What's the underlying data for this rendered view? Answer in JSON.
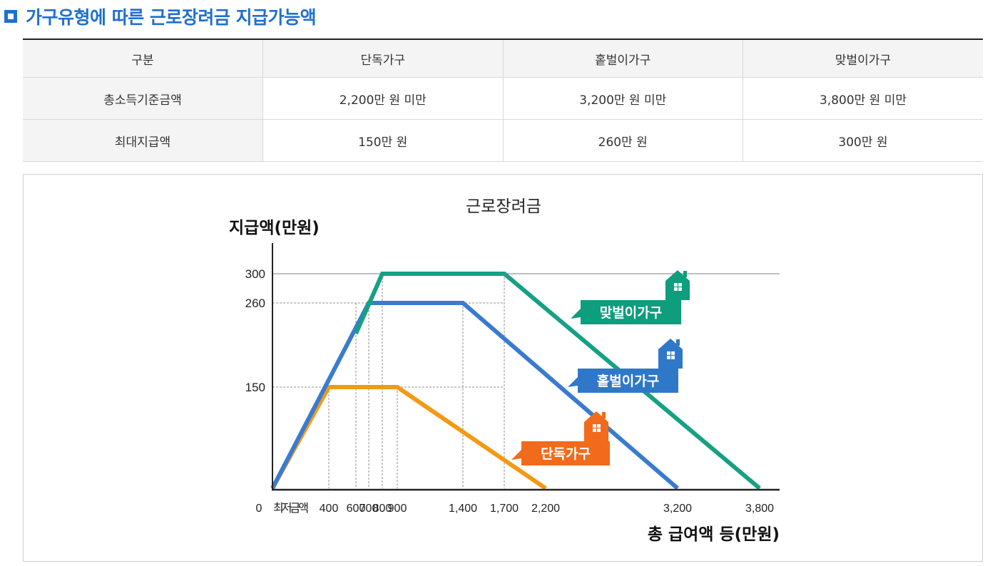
{
  "page": {
    "title": "가구유형에 따른 근로장려금 지급가능액"
  },
  "table": {
    "headers": [
      "구분",
      "단독가구",
      "홑벌이가구",
      "맞벌이가구"
    ],
    "rows": [
      [
        "총소득기준금액",
        "2,200만 원 미만",
        "3,200만 원 미만",
        "3,800만 원 미만"
      ],
      [
        "최대지급액",
        "150만 원",
        "260만 원",
        "300만 원"
      ]
    ]
  },
  "chart_data": {
    "type": "line",
    "title": "근로장려금",
    "ylabel": "지급액(만원)",
    "xlabel": "총 급여액 등(만원)",
    "x_ticks": [
      {
        "value": 0,
        "label": "0"
      },
      {
        "value": 200,
        "label": "최저금액"
      },
      {
        "value": 400,
        "label": "400"
      },
      {
        "value": 600,
        "label": "600"
      },
      {
        "value": 700,
        "label": "700"
      },
      {
        "value": 800,
        "label": "800"
      },
      {
        "value": 900,
        "label": "900"
      },
      {
        "value": 1400,
        "label": "1,400"
      },
      {
        "value": 1700,
        "label": "1,700"
      },
      {
        "value": 2200,
        "label": "2,200"
      },
      {
        "value": 3200,
        "label": "3,200"
      },
      {
        "value": 3800,
        "label": "3,800"
      }
    ],
    "y_ticks": [
      {
        "value": 150,
        "label": "150"
      },
      {
        "value": 260,
        "label": "260"
      },
      {
        "value": 300,
        "label": "300"
      }
    ],
    "series": [
      {
        "name": "단독가구",
        "color": "#f29a14",
        "label_color": "#f26a1b",
        "points": [
          [
            0,
            0
          ],
          [
            400,
            150
          ],
          [
            900,
            150
          ],
          [
            2200,
            0
          ]
        ]
      },
      {
        "name": "홑벌이가구",
        "color": "#3a7bd0",
        "label_color": "#2f78c8",
        "points": [
          [
            0,
            0
          ],
          [
            700,
            260
          ],
          [
            1400,
            260
          ],
          [
            3200,
            0
          ]
        ]
      },
      {
        "name": "맞벌이가구",
        "color": "#16a085",
        "label_color": "#0e9d7d",
        "points": [
          [
            600,
            220
          ],
          [
            800,
            300
          ],
          [
            1700,
            300
          ],
          [
            3800,
            0
          ]
        ]
      }
    ],
    "icon": "house-icon"
  }
}
